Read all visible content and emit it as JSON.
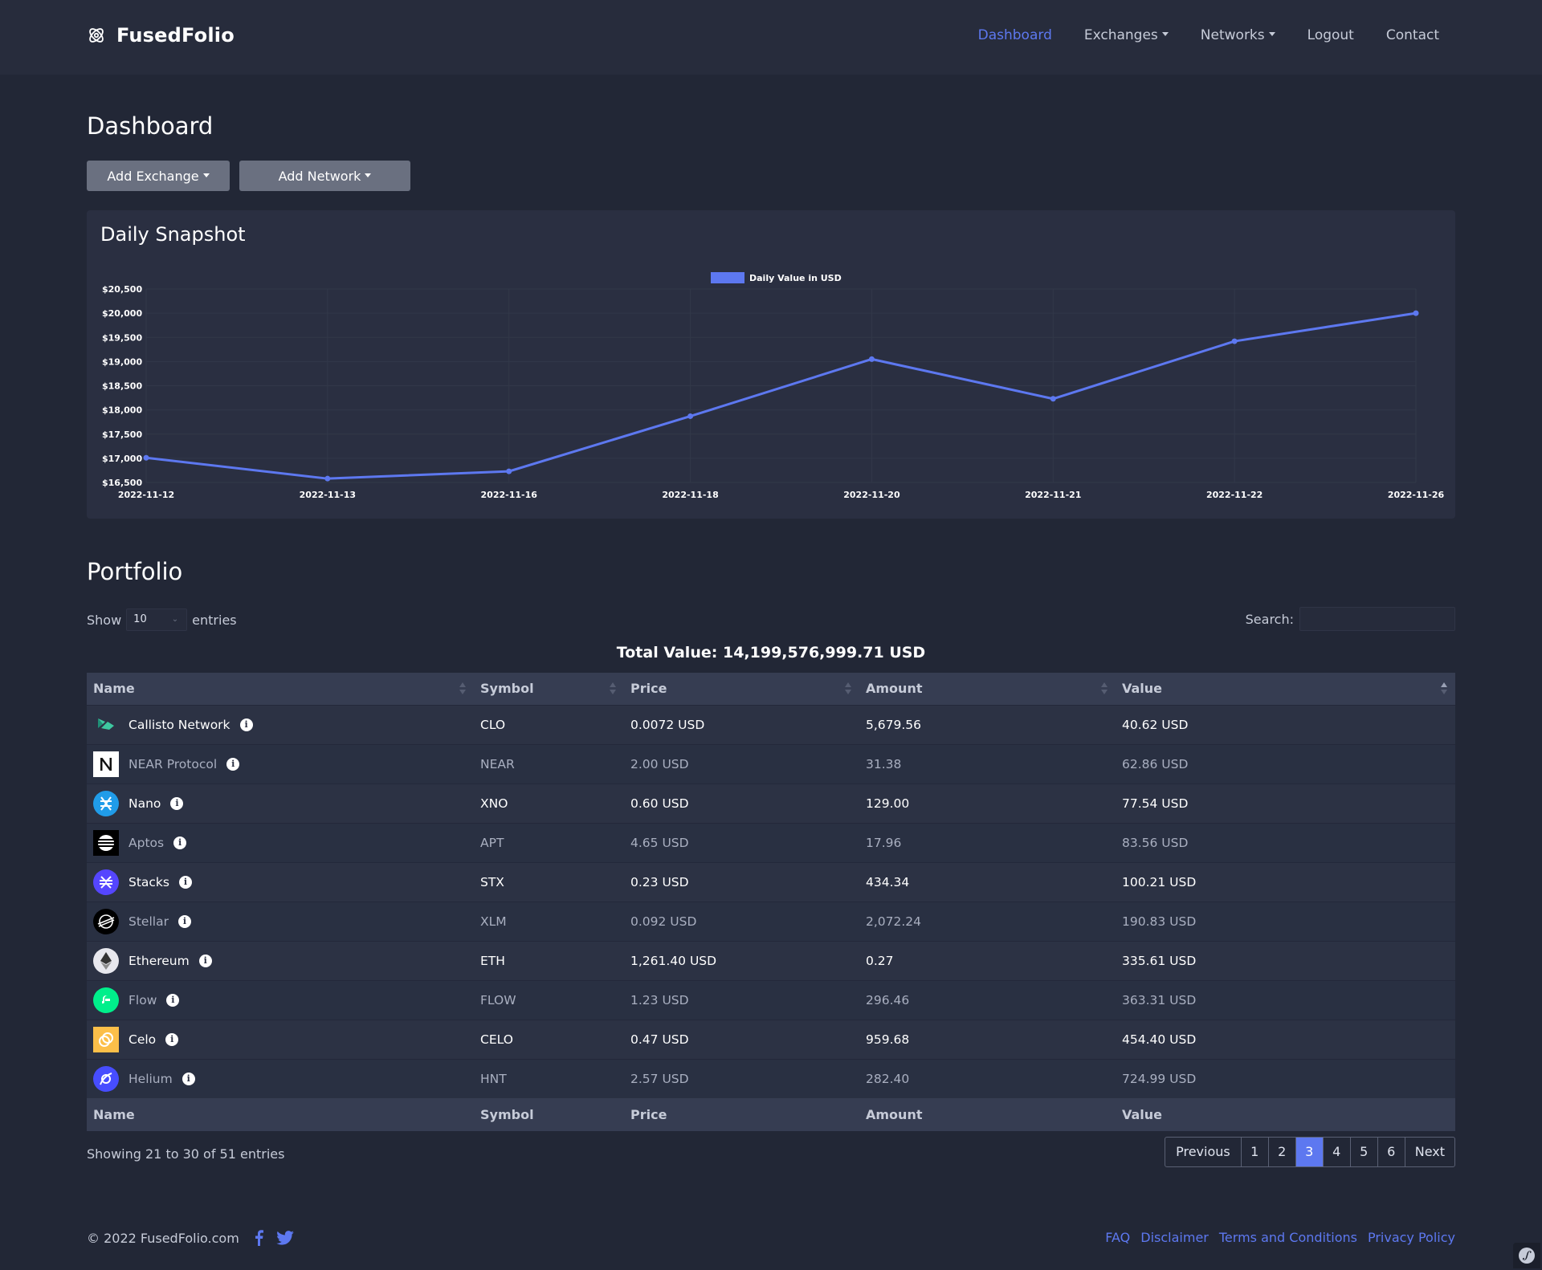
{
  "brand": {
    "name": "FusedFolio"
  },
  "nav": {
    "items": [
      {
        "label": "Dashboard",
        "active": true,
        "dropdown": false
      },
      {
        "label": "Exchanges",
        "active": false,
        "dropdown": true
      },
      {
        "label": "Networks",
        "active": false,
        "dropdown": true
      },
      {
        "label": "Logout",
        "active": false,
        "dropdown": false
      },
      {
        "label": "Contact",
        "active": false,
        "dropdown": false
      }
    ]
  },
  "page": {
    "title": "Dashboard"
  },
  "actions": {
    "add_exchange": "Add Exchange",
    "add_network": "Add Network"
  },
  "snapshot": {
    "title": "Daily Snapshot"
  },
  "chart_data": {
    "type": "line",
    "title": "",
    "x": [
      "2022-11-12",
      "2022-11-13",
      "2022-11-16",
      "2022-11-18",
      "2022-11-20",
      "2022-11-21",
      "2022-11-22",
      "2022-11-26"
    ],
    "series": [
      {
        "name": "Daily Value in USD",
        "values": [
          17010,
          16580,
          16730,
          17870,
          19050,
          18230,
          19420,
          20000
        ]
      }
    ],
    "ylim": [
      16500,
      20500
    ],
    "yticks": [
      "$20,500",
      "$20,000",
      "$19,500",
      "$19,000",
      "$18,500",
      "$18,000",
      "$17,500",
      "$17,000",
      "$16,500"
    ],
    "xlabel": "",
    "ylabel": "",
    "grid": true,
    "legend": "top-center",
    "color": "#5d78f0"
  },
  "portfolio": {
    "title": "Portfolio",
    "show_label": "Show",
    "entries_label": "entries",
    "page_length": "10",
    "search_label": "Search:",
    "total_label": "Total Value:",
    "total_value": "14,199,576,999.71 USD",
    "columns": [
      "Name",
      "Symbol",
      "Price",
      "Amount",
      "Value"
    ],
    "rows": [
      {
        "name": "Callisto Network",
        "symbol": "CLO",
        "price": "0.0072 USD",
        "amount": "5,679.56",
        "value": "40.62 USD",
        "icon": "callisto-icon"
      },
      {
        "name": "NEAR Protocol",
        "symbol": "NEAR",
        "price": "2.00 USD",
        "amount": "31.38",
        "value": "62.86 USD",
        "icon": "near-icon"
      },
      {
        "name": "Nano",
        "symbol": "XNO",
        "price": "0.60 USD",
        "amount": "129.00",
        "value": "77.54 USD",
        "icon": "nano-icon"
      },
      {
        "name": "Aptos",
        "symbol": "APT",
        "price": "4.65 USD",
        "amount": "17.96",
        "value": "83.56 USD",
        "icon": "aptos-icon"
      },
      {
        "name": "Stacks",
        "symbol": "STX",
        "price": "0.23 USD",
        "amount": "434.34",
        "value": "100.21 USD",
        "icon": "stacks-icon"
      },
      {
        "name": "Stellar",
        "symbol": "XLM",
        "price": "0.092 USD",
        "amount": "2,072.24",
        "value": "190.83 USD",
        "icon": "stellar-icon"
      },
      {
        "name": "Ethereum",
        "symbol": "ETH",
        "price": "1,261.40 USD",
        "amount": "0.27",
        "value": "335.61 USD",
        "icon": "ethereum-icon"
      },
      {
        "name": "Flow",
        "symbol": "FLOW",
        "price": "1.23 USD",
        "amount": "296.46",
        "value": "363.31 USD",
        "icon": "flow-icon"
      },
      {
        "name": "Celo",
        "symbol": "CELO",
        "price": "0.47 USD",
        "amount": "959.68",
        "value": "454.40 USD",
        "icon": "celo-icon"
      },
      {
        "name": "Helium",
        "symbol": "HNT",
        "price": "2.57 USD",
        "amount": "282.40",
        "value": "724.99 USD",
        "icon": "helium-icon"
      }
    ],
    "info_glyph": "i",
    "showing": "Showing 21 to 30 of 51 entries",
    "pagination": {
      "previous": "Previous",
      "next": "Next",
      "pages": [
        "1",
        "2",
        "3",
        "4",
        "5",
        "6"
      ],
      "current": "3"
    }
  },
  "footer": {
    "copyright": "© 2022 FusedFolio.com",
    "links": [
      "FAQ",
      "Disclaimer",
      "Terms and Conditions",
      "Privacy Policy"
    ]
  }
}
